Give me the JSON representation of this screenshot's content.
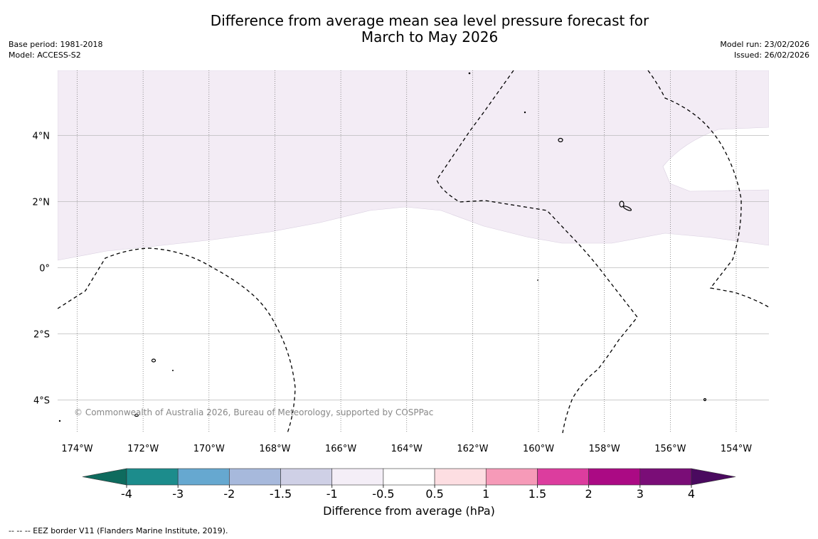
{
  "title_line1": "Difference from average mean sea level pressure forecast for",
  "title_line2": "March to May 2026",
  "base_period": "Base period: 1981-2018",
  "model": "Model: ACCESS-S2",
  "model_run": "Model run: 23/02/2026",
  "issued": "Issued: 26/02/2026",
  "copyright": "© Commonwealth of Australia 2026, Bureau of Meteorology, supported by COSPPac",
  "eez_note": "--  --  -- EEZ border V11 (Flanders Marine Institute, 2019).",
  "map": {
    "lon_labels": [
      "174°W",
      "172°W",
      "170°W",
      "168°W",
      "166°W",
      "164°W",
      "162°W",
      "160°W",
      "158°W",
      "156°W",
      "154°W"
    ],
    "lat_labels": [
      "4°N",
      "2°N",
      "0°",
      "2°S",
      "4°S"
    ],
    "shaded_region_color": "#f3ecf5",
    "land_color": "#ffffff",
    "eez_color": "#000000"
  },
  "colorbar": {
    "label": "Difference from average (hPa)",
    "ticks": [
      "-4",
      "-3",
      "-2",
      "-1.5",
      "-1",
      "-0.5",
      "0.5",
      "1",
      "1.5",
      "2",
      "3",
      "4"
    ],
    "colors": [
      "#1c8c8c",
      "#66a8d0",
      "#a7b9dc",
      "#cfd0e6",
      "#f4eef7",
      "#ffffff",
      "#fddee2",
      "#f69ab8",
      "#dc3d9e",
      "#ab0a84",
      "#7a0d77"
    ],
    "low_extend_color": "#0e6b5e",
    "high_extend_color": "#4a0a5f"
  }
}
